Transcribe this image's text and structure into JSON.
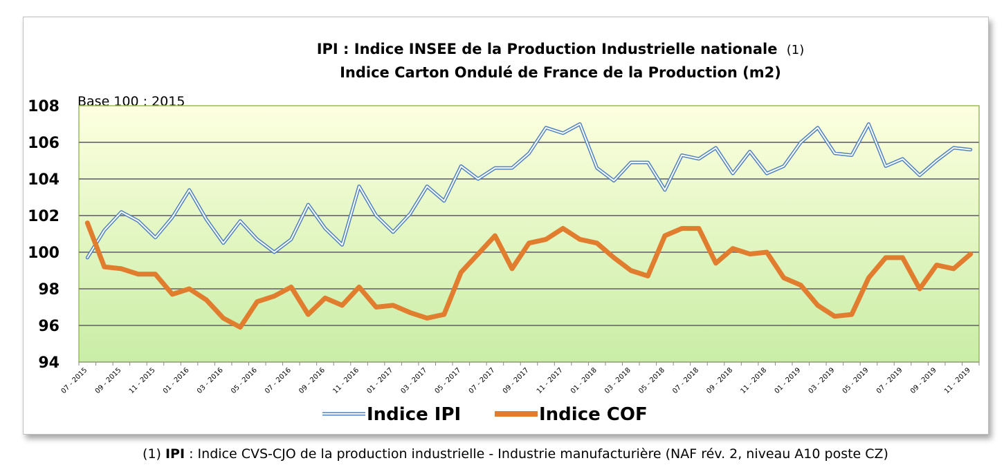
{
  "chart_data": {
    "type": "line",
    "title_line1_main": "IPI : Indice INSEE de la Production Industrielle nationale",
    "title_line1_note": "(1)",
    "title_line2": "Indice Carton Ondulé de France de la Production (m2)",
    "base_note": "Base 100 : 2015",
    "ylim": [
      94,
      108
    ],
    "yticks": [
      94,
      96,
      98,
      100,
      102,
      104,
      106,
      108
    ],
    "grid": true,
    "legend_position": "bottom-center",
    "plot_colors": {
      "top": "#fdffe0",
      "bottom": "#c9eda6",
      "gridline": "#7f7f7f",
      "border": "#9bbb59"
    },
    "x_labels": [
      "07 - 2015",
      "09 - 2015",
      "11 - 2015",
      "01 - 2016",
      "03 - 2016",
      "05 - 2016",
      "07 - 2016",
      "09 - 2016",
      "11 - 2016",
      "01 - 2017",
      "03 - 2017",
      "05 - 2017",
      "07 - 2017",
      "09 - 2017",
      "11 - 2017",
      "01 - 2018",
      "03 - 2018",
      "05 - 2018",
      "07 - 2018",
      "09 - 2018",
      "11 - 2018",
      "01 - 2019",
      "03 - 2019",
      "05 - 2019",
      "07 - 2019",
      "09 - 2019",
      "11 - 2019"
    ],
    "series": [
      {
        "name": "Indice IPI",
        "color": "#4f81bd",
        "style": "double",
        "values": [
          99.7,
          101.2,
          102.2,
          101.7,
          100.8,
          101.9,
          103.4,
          101.8,
          100.5,
          101.7,
          100.7,
          100.0,
          100.7,
          102.6,
          101.3,
          100.4,
          103.6,
          102.0,
          101.1,
          102.1,
          103.6,
          102.8,
          104.7,
          104.0,
          104.6,
          104.6,
          105.4,
          106.8,
          106.5,
          107.0,
          104.6,
          103.9,
          104.9,
          104.9,
          103.4,
          105.3,
          105.1,
          105.7,
          104.3,
          105.5,
          104.3,
          104.7,
          106.0,
          106.8,
          105.4,
          105.3,
          107.0,
          104.7,
          105.1,
          104.2,
          105.0,
          105.7,
          105.6
        ]
      },
      {
        "name": "Indice COF",
        "color": "#e07d2e",
        "style": "thick",
        "values": [
          101.6,
          99.2,
          99.1,
          98.8,
          98.8,
          97.7,
          98.0,
          97.4,
          96.4,
          95.9,
          97.3,
          97.6,
          98.1,
          96.6,
          97.5,
          97.1,
          98.1,
          97.0,
          97.1,
          96.7,
          96.4,
          96.6,
          98.9,
          99.9,
          100.9,
          99.1,
          100.5,
          100.7,
          101.3,
          100.7,
          100.5,
          99.7,
          99.0,
          98.7,
          100.9,
          101.3,
          101.3,
          99.4,
          100.2,
          99.9,
          100.0,
          98.6,
          98.2,
          97.1,
          96.5,
          96.6,
          98.6,
          99.7,
          99.7,
          98.0,
          99.3,
          99.1,
          99.9
        ]
      }
    ]
  },
  "footnote": {
    "prefix": "(1) ",
    "bold": "IPI",
    "rest": " : Indice CVS-CJO de la production industrielle  - Industrie manufacturière (NAF rév. 2, niveau A10 poste CZ)"
  }
}
